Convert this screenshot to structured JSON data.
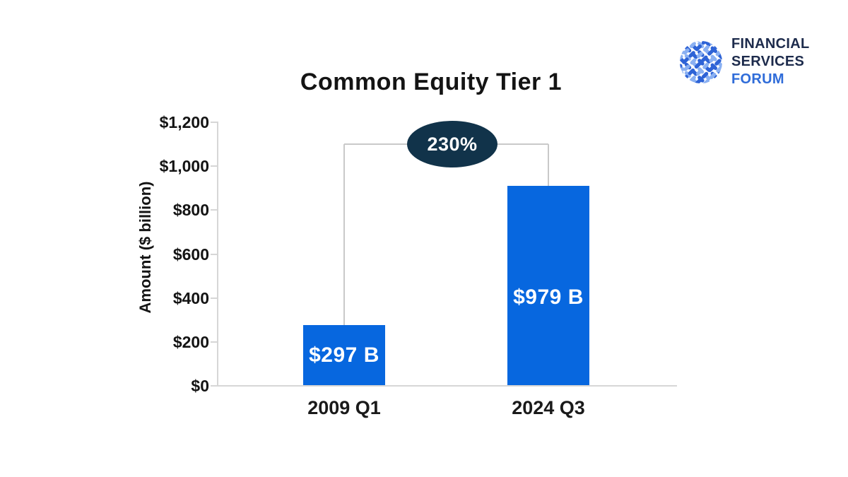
{
  "logo": {
    "line1": "FINANCIAL",
    "line2": "SERVICES",
    "line3": "FORUM",
    "navy": "#1d2b4c",
    "blue": "#2f6cd9",
    "globe_dark": "#2e63d6",
    "globe_light": "#8ab0f2"
  },
  "chart_data": {
    "type": "bar",
    "title": "Common Equity Tier 1",
    "ylabel": "Amount ($ billion)",
    "xlabel": "",
    "categories": [
      "2009 Q1",
      "2024 Q3"
    ],
    "values": [
      297,
      979
    ],
    "bar_labels": [
      "$297 B",
      "$979 B"
    ],
    "ylim": [
      0,
      1200
    ],
    "ytick_values": [
      0,
      200,
      400,
      600,
      800,
      1000,
      1200
    ],
    "ytick_labels": [
      "$0",
      "$200",
      "$400",
      "$600",
      "$800",
      "$1,000",
      "$1,200"
    ],
    "grid": "off",
    "legend": "none",
    "annotation": {
      "text": "230%",
      "level": 1100
    },
    "bar_color": "#0767df",
    "annotation_bg": "#11334a",
    "axis_color": "#d6d6d6",
    "bracket_color": "#c9c9c9",
    "text_color": "#141414"
  }
}
